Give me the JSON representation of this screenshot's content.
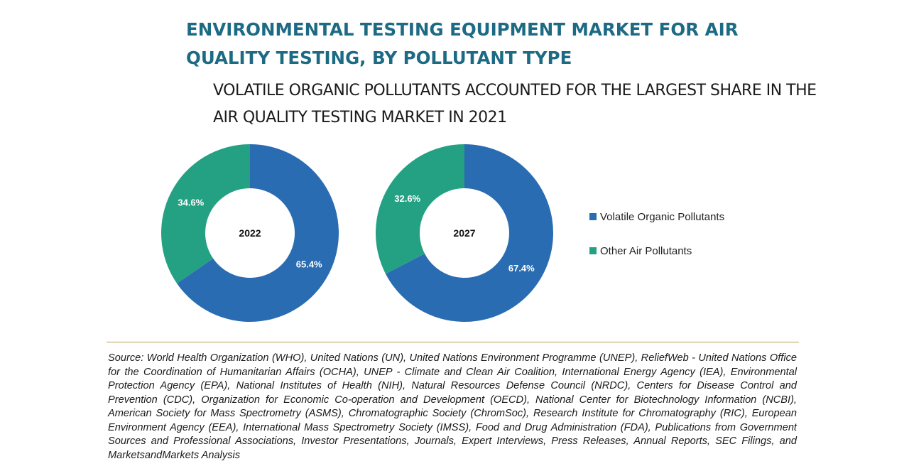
{
  "title": "ENVIRONMENTAL TESTING EQUIPMENT MARKET FOR AIR QUALITY TESTING, BY POLLUTANT TYPE",
  "subtitle": "VOLATILE ORGANIC POLLUTANTS ACCOUNTED FOR THE LARGEST SHARE IN THE AIR QUALITY TESTING MARKET IN 2021",
  "colors": {
    "volatile": "#2a6cb1",
    "other": "#24a183",
    "title": "#1d6a84"
  },
  "chart_data": [
    {
      "type": "pie",
      "center_label": "2022",
      "categories": [
        "Volatile Organic Pollutants",
        "Other Air Pollutants"
      ],
      "values": [
        65.4,
        34.6
      ],
      "labels": [
        "65.4%",
        "34.6%"
      ]
    },
    {
      "type": "pie",
      "center_label": "2027",
      "categories": [
        "Volatile Organic Pollutants",
        "Other Air Pollutants"
      ],
      "values": [
        67.4,
        32.6
      ],
      "labels": [
        "67.4%",
        "32.6%"
      ]
    }
  ],
  "legend": [
    {
      "label": "Volatile Organic Pollutants",
      "color": "#2a6cb1"
    },
    {
      "label": "Other Air Pollutants",
      "color": "#24a183"
    }
  ],
  "source": "Source: World Health Organization (WHO), United Nations (UN), United Nations Environment Programme (UNEP), ReliefWeb - United Nations Office for the Coordination of Humanitarian Affairs (OCHA), UNEP - Climate and Clean Air Coalition, International Energy Agency (IEA), Environmental Protection Agency (EPA), National Institutes of Health (NIH), Natural Resources Defense Council (NRDC), Centers for Disease Control and Prevention (CDC), Organization for Economic Co-operation and Development (OECD), National Center for Biotechnology Information (NCBI), American Society for Mass Spectrometry (ASMS), Chromatographic Society (ChromSoc), Research Institute for Chromatography (RIC), European Environment Agency (EEA), International Mass Spectrometry Society (IMSS), Food and Drug Administration (FDA), Publications from Government Sources and Professional Associations, Investor Presentations, Journals, Expert Interviews, Press Releases, Annual Reports, SEC Filings, and MarketsandMarkets Analysis"
}
